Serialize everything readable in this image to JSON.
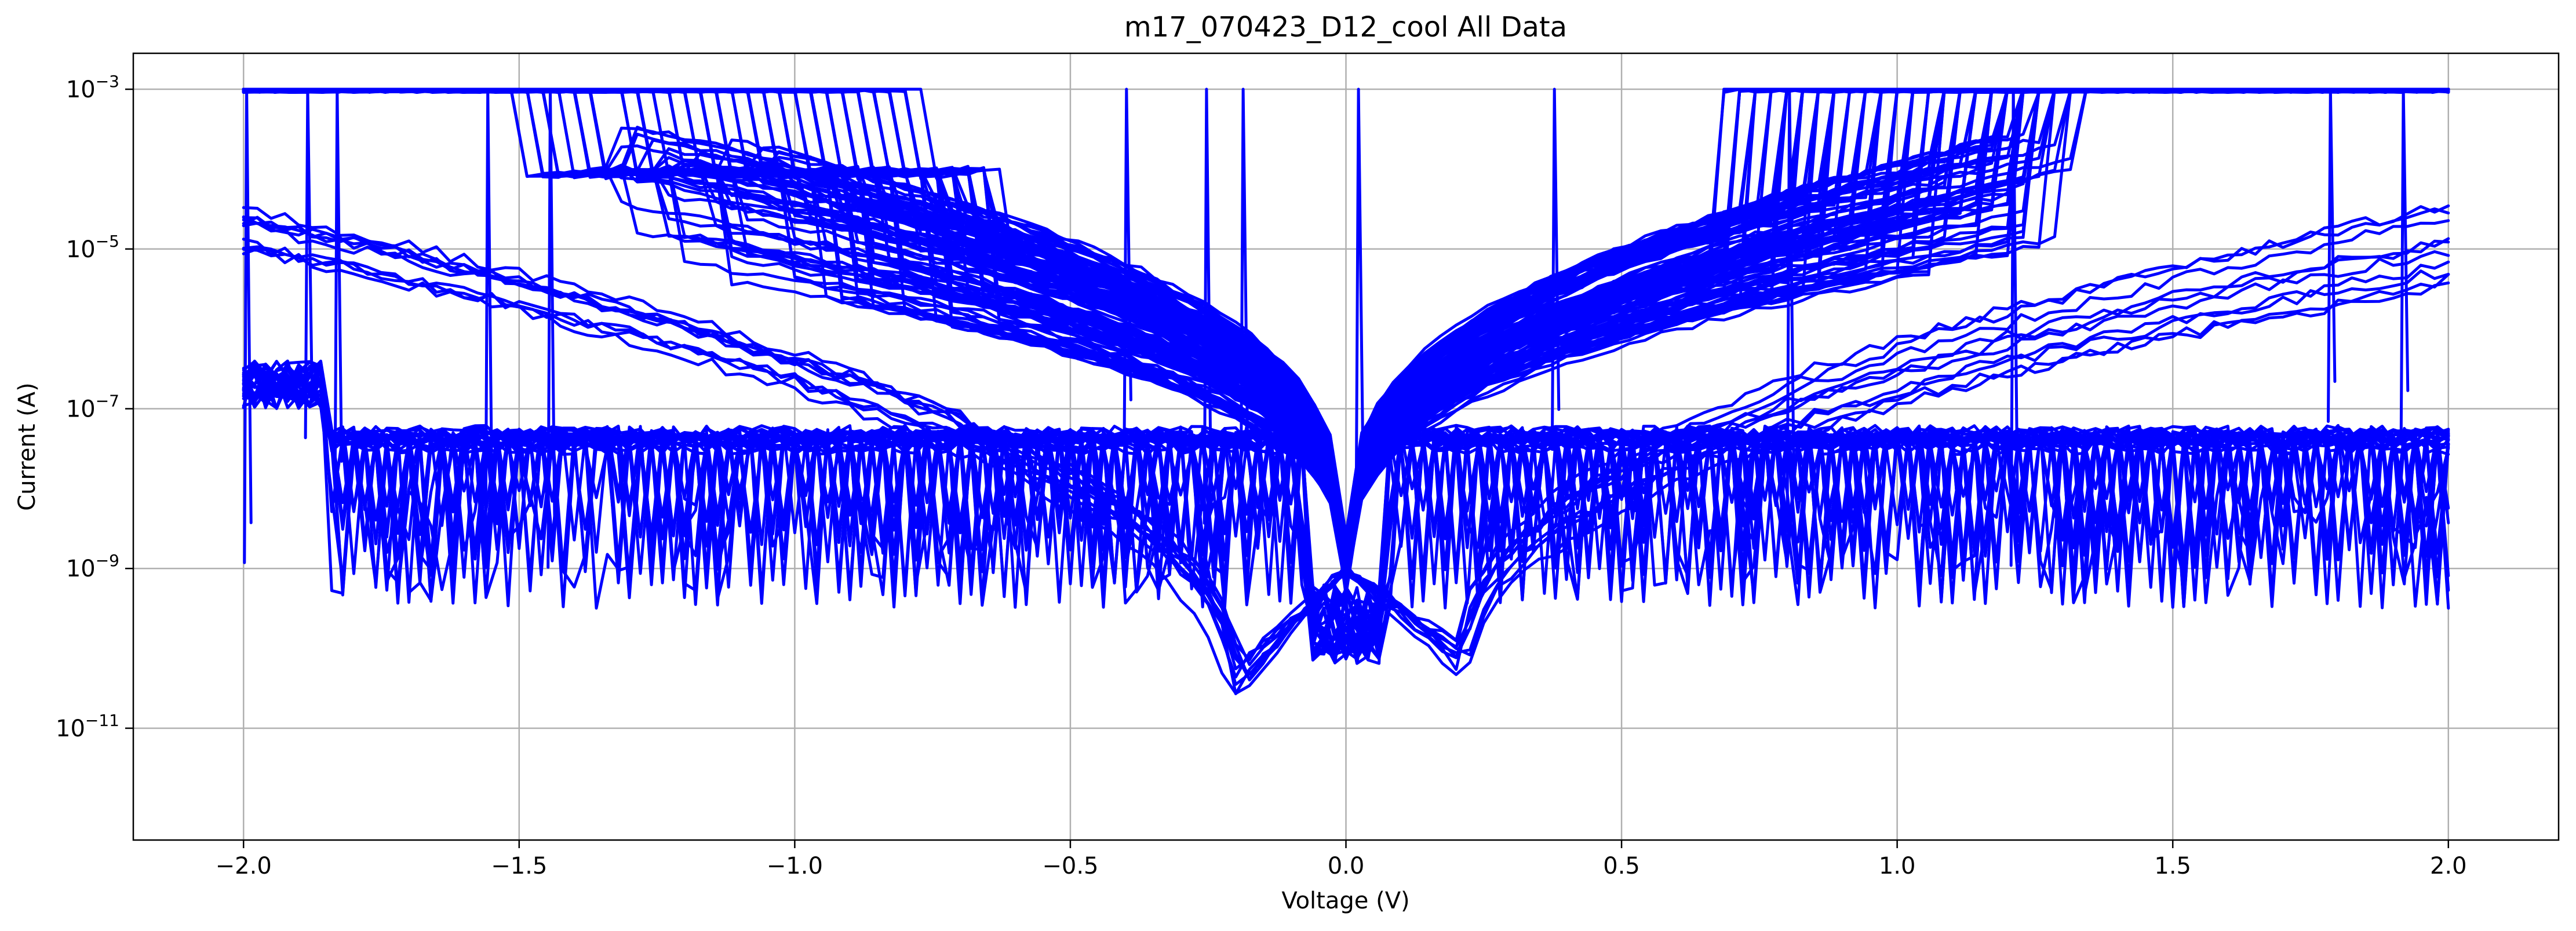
{
  "chart_data": {
    "type": "line",
    "title": "m17_070423_D12_cool All Data",
    "xlabel": "Voltage (V)",
    "ylabel": "Current (A)",
    "xlim": [
      -2.2,
      2.2
    ],
    "ylim_log10": [
      -12.4,
      -2.55
    ],
    "yscale": "log",
    "grid": true,
    "line_color": "#0000ff",
    "x_ticks": [
      {
        "value": -2.0,
        "label": "−2.0"
      },
      {
        "value": -1.5,
        "label": "−1.5"
      },
      {
        "value": -1.0,
        "label": "−1.0"
      },
      {
        "value": -0.5,
        "label": "−0.5"
      },
      {
        "value": 0.0,
        "label": "0.0"
      },
      {
        "value": 0.5,
        "label": "0.5"
      },
      {
        "value": 1.0,
        "label": "1.0"
      },
      {
        "value": 1.5,
        "label": "1.5"
      },
      {
        "value": 2.0,
        "label": "2.0"
      }
    ],
    "y_ticks": [
      {
        "value": 0.001,
        "base": "10",
        "exp": "−3"
      },
      {
        "value": 1e-05,
        "base": "10",
        "exp": "−5"
      },
      {
        "value": 1e-07,
        "base": "10",
        "exp": "−7"
      },
      {
        "value": 1e-09,
        "base": "10",
        "exp": "−9"
      },
      {
        "value": 1e-11,
        "base": "10",
        "exp": "−11"
      }
    ],
    "series_groups": [
      {
        "kind": "switching-V",
        "count": 120,
        "compliance": 0.001,
        "set_voltage_range": [
          0.68,
          1.34
        ],
        "reset_voltage_range": [
          -1.35,
          -0.6
        ],
        "pos_current_at_1V_log10": [
          -5.4,
          -3.9
        ],
        "neg_current_at_minus1V_log10": [
          -5.6,
          -3.8
        ]
      },
      {
        "kind": "high-resistance-diode",
        "count": 10,
        "min_voltage_range": [
          -0.22,
          -0.18
        ],
        "max_voltage_range": [
          0.2,
          0.24
        ],
        "current_at_2V_log10": [
          -5.5,
          -4.4
        ],
        "current_at_minus2V_log10": [
          -5.0,
          -4.4
        ],
        "dip_current_log10": [
          -11.0,
          -10.2
        ]
      },
      {
        "kind": "flat-noisy",
        "count": 30,
        "plateau_current_log10": [
          -7.5,
          -7.3
        ],
        "noise_floor_log10": [
          -9.5,
          -8.0
        ]
      }
    ]
  }
}
